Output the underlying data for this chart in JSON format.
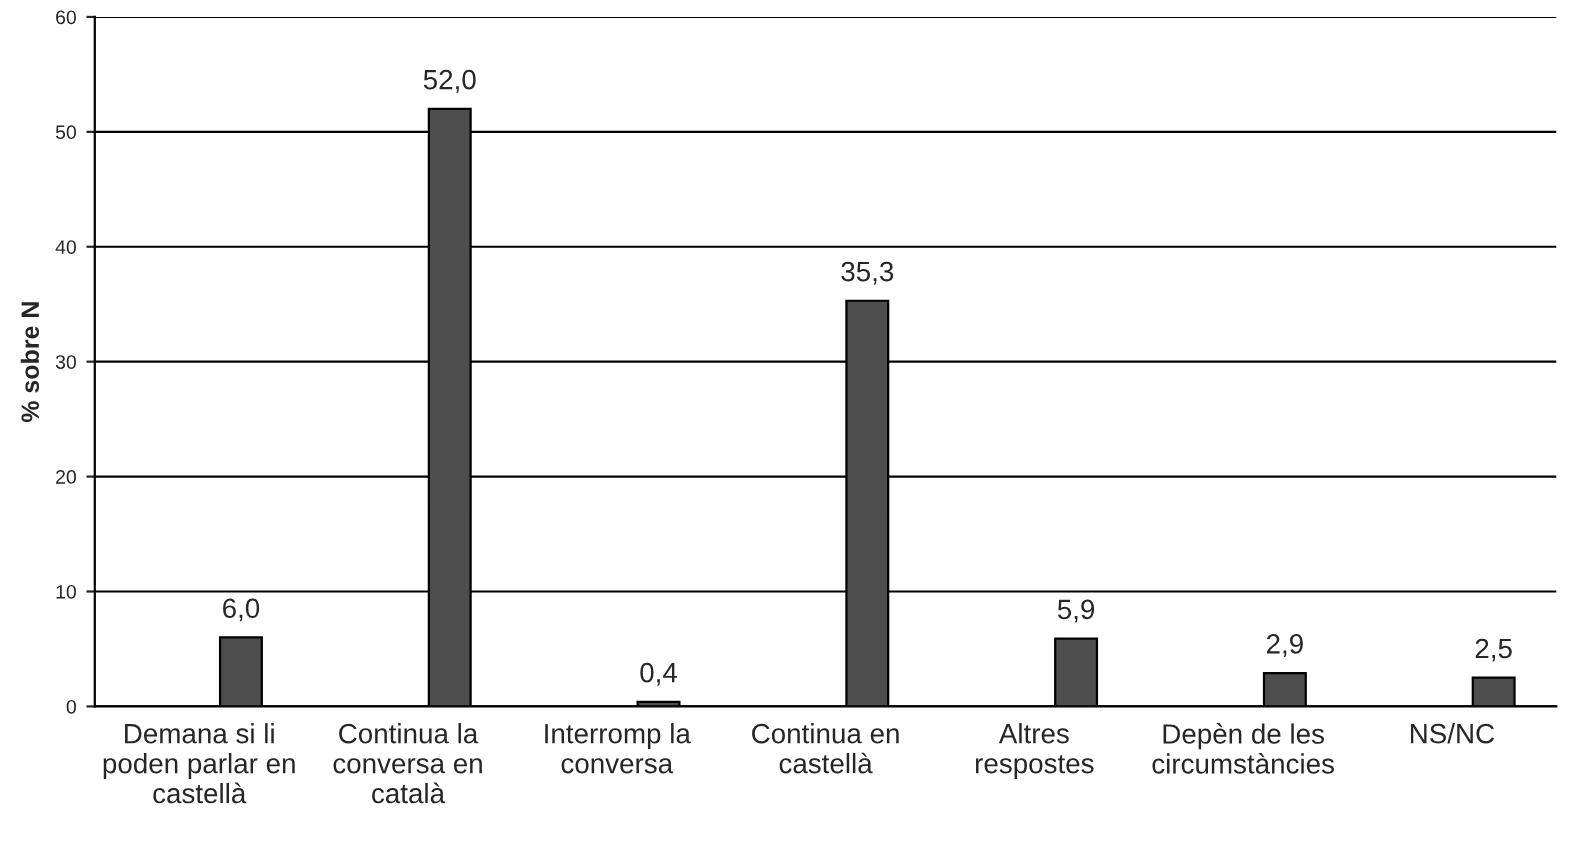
{
  "chart_data": {
    "type": "bar",
    "ylabel": "% sobre N",
    "categories": [
      "Demana si li\npoden parlar en\ncastellà",
      "Continua la\nconversa en\ncatalà",
      "Interromp la\nconversa",
      "Continua en\ncastellà",
      "Altres\nrespostes",
      "Depèn de les\ncircumstàncies",
      "NS/NC"
    ],
    "values": [
      6.0,
      52.0,
      0.4,
      35.3,
      5.9,
      2.9,
      2.5
    ],
    "value_labels": [
      "6,0",
      "52,0",
      "0,4",
      "35,3",
      "5,9",
      "2,9",
      "2,5"
    ],
    "color": "#4d4d4d",
    "ylim": [
      0,
      60
    ],
    "yticks": [
      0,
      10,
      20,
      30,
      40,
      50,
      60
    ],
    "grid": "y",
    "legend": false
  }
}
